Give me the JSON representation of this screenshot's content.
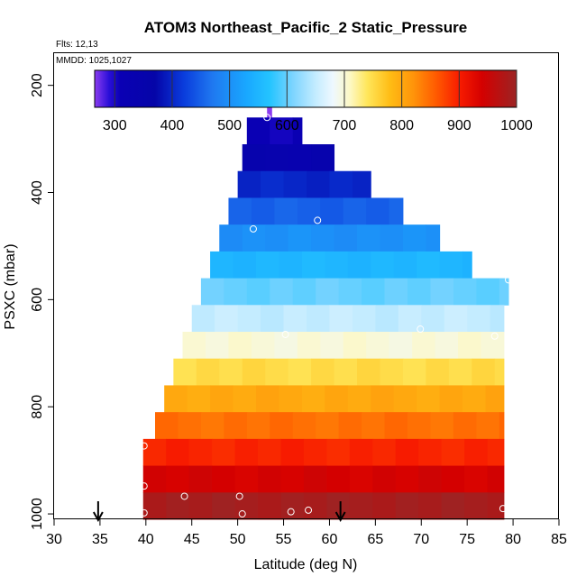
{
  "chart_data": {
    "type": "heatmap",
    "title": "ATOM3 Northeast_Pacific_2 Static_Pressure",
    "flights_label": "Flts: 12,13",
    "dates_label": "MMDD: 1025,1027",
    "xlabel": "Latitude (deg N)",
    "ylabel": "PSXC (mbar)",
    "xlim": [
      30,
      85
    ],
    "ylim": [
      1010,
      140
    ],
    "x_ticks": [
      30,
      35,
      40,
      45,
      50,
      55,
      60,
      65,
      70,
      75,
      80,
      85
    ],
    "y_ticks": [
      200,
      400,
      600,
      800,
      1000
    ],
    "colorbar": {
      "range": [
        265,
        1000
      ],
      "ticks": [
        300,
        400,
        500,
        600,
        700,
        800,
        900,
        1000
      ],
      "stops": [
        {
          "v": 265,
          "c": "#8b3cf0"
        },
        {
          "v": 290,
          "c": "#2a0fd8"
        },
        {
          "v": 310,
          "c": "#0a00b4"
        },
        {
          "v": 370,
          "c": "#0505a8"
        },
        {
          "v": 420,
          "c": "#0a3cdc"
        },
        {
          "v": 470,
          "c": "#1f78f0"
        },
        {
          "v": 530,
          "c": "#19a8ff"
        },
        {
          "v": 570,
          "c": "#24c4ff"
        },
        {
          "v": 610,
          "c": "#7cd4ff"
        },
        {
          "v": 650,
          "c": "#c4ecff"
        },
        {
          "v": 680,
          "c": "#eef8ff"
        },
        {
          "v": 710,
          "c": "#fdf8c4"
        },
        {
          "v": 740,
          "c": "#ffe65a"
        },
        {
          "v": 780,
          "c": "#ffbc14"
        },
        {
          "v": 820,
          "c": "#ff940a"
        },
        {
          "v": 860,
          "c": "#ff5a00"
        },
        {
          "v": 900,
          "c": "#f81c00"
        },
        {
          "v": 940,
          "c": "#d40000"
        },
        {
          "v": 1000,
          "c": "#9b2424"
        }
      ]
    },
    "bands": [
      {
        "p_top": 210,
        "p_bot": 260,
        "lat_min": 53.2,
        "lat_max": 53.7,
        "value": 265
      },
      {
        "p_top": 260,
        "p_bot": 310,
        "lat_min": 51.0,
        "lat_max": 57.0,
        "value": 310
      },
      {
        "p_top": 310,
        "p_bot": 360,
        "lat_min": 50.5,
        "lat_max": 60.5,
        "value": 340
      },
      {
        "p_top": 360,
        "p_bot": 410,
        "lat_min": 50.0,
        "lat_max": 64.5,
        "value": 400
      },
      {
        "p_top": 410,
        "p_bot": 460,
        "lat_min": 49.0,
        "lat_max": 68.0,
        "value": 450
      },
      {
        "p_top": 460,
        "p_bot": 510,
        "lat_min": 48.0,
        "lat_max": 72.0,
        "value": 500
      },
      {
        "p_top": 510,
        "p_bot": 560,
        "lat_min": 47.0,
        "lat_max": 75.5,
        "value": 550
      },
      {
        "p_top": 560,
        "p_bot": 610,
        "lat_min": 46.0,
        "lat_max": 79.5,
        "value": 600
      },
      {
        "p_top": 610,
        "p_bot": 660,
        "lat_min": 45.0,
        "lat_max": 79.0,
        "value": 650
      },
      {
        "p_top": 660,
        "p_bot": 710,
        "lat_min": 44.0,
        "lat_max": 79.0,
        "value": 700
      },
      {
        "p_top": 710,
        "p_bot": 760,
        "lat_min": 43.0,
        "lat_max": 79.0,
        "value": 750
      },
      {
        "p_top": 760,
        "p_bot": 810,
        "lat_min": 42.0,
        "lat_max": 79.0,
        "value": 800
      },
      {
        "p_top": 810,
        "p_bot": 860,
        "lat_min": 41.0,
        "lat_max": 79.0,
        "value": 845
      },
      {
        "p_top": 860,
        "p_bot": 910,
        "lat_min": 39.7,
        "lat_max": 79.0,
        "value": 895
      },
      {
        "p_top": 910,
        "p_bot": 960,
        "lat_min": 39.7,
        "lat_max": 79.0,
        "value": 940
      },
      {
        "p_top": 960,
        "p_bot": 1010,
        "lat_min": 39.7,
        "lat_max": 79.0,
        "value": 990
      }
    ],
    "points": [
      {
        "lat": 53.2,
        "p": 260
      },
      {
        "lat": 51.7,
        "p": 468
      },
      {
        "lat": 58.7,
        "p": 452
      },
      {
        "lat": 79.5,
        "p": 563
      },
      {
        "lat": 55.2,
        "p": 665
      },
      {
        "lat": 69.9,
        "p": 655
      },
      {
        "lat": 78.0,
        "p": 668
      },
      {
        "lat": 39.8,
        "p": 873
      },
      {
        "lat": 39.8,
        "p": 948
      },
      {
        "lat": 44.2,
        "p": 967
      },
      {
        "lat": 50.2,
        "p": 967
      },
      {
        "lat": 39.8,
        "p": 998
      },
      {
        "lat": 50.5,
        "p": 1000
      },
      {
        "lat": 55.8,
        "p": 996
      },
      {
        "lat": 57.7,
        "p": 993
      },
      {
        "lat": 78.9,
        "p": 990
      }
    ],
    "arrows": [
      {
        "lat": 34.8
      },
      {
        "lat": 61.2
      }
    ]
  }
}
